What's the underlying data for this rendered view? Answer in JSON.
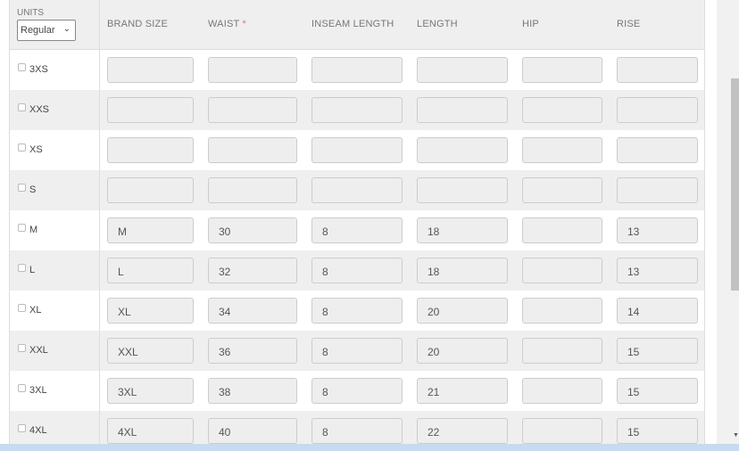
{
  "units": {
    "label": "UNITS",
    "selected": "Regular"
  },
  "columns": [
    "BRAND SIZE",
    "WAIST",
    "INSEAM LENGTH",
    "LENGTH",
    "HIP",
    "RISE"
  ],
  "required_marker": "*",
  "rows": [
    {
      "size": "3XS",
      "values": [
        "",
        "",
        "",
        "",
        "",
        ""
      ]
    },
    {
      "size": "XXS",
      "values": [
        "",
        "",
        "",
        "",
        "",
        ""
      ]
    },
    {
      "size": "XS",
      "values": [
        "",
        "",
        "",
        "",
        "",
        ""
      ]
    },
    {
      "size": "S",
      "values": [
        "",
        "",
        "",
        "",
        "",
        ""
      ]
    },
    {
      "size": "M",
      "values": [
        "M",
        "30",
        "8",
        "18",
        "",
        "13"
      ]
    },
    {
      "size": "L",
      "values": [
        "L",
        "32",
        "8",
        "18",
        "",
        "13"
      ]
    },
    {
      "size": "XL",
      "values": [
        "XL",
        "34",
        "8",
        "20",
        "",
        "14"
      ]
    },
    {
      "size": "XXL",
      "values": [
        "XXL",
        "36",
        "8",
        "20",
        "",
        "15"
      ]
    },
    {
      "size": "3XL",
      "values": [
        "3XL",
        "38",
        "8",
        "21",
        "",
        "15"
      ]
    },
    {
      "size": "4XL",
      "values": [
        "4XL",
        "40",
        "8",
        "22",
        "",
        "15"
      ]
    }
  ]
}
